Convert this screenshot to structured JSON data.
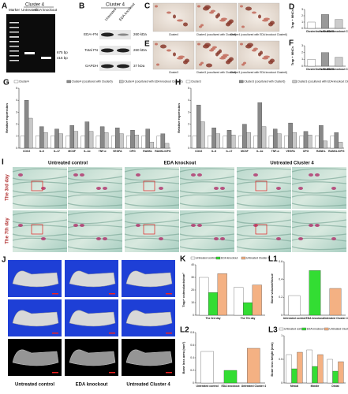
{
  "panels": {
    "A": {
      "label": "A",
      "header": "Cluster 4",
      "lanes": [
        "Marker",
        "Untreated",
        "EDA knockout"
      ],
      "sizes": [
        "675 bp",
        "415 bp"
      ]
    },
    "B": {
      "label": "B",
      "header": "Cluster 4",
      "lanes": [
        "Untreated",
        "EDA knockout"
      ],
      "rows": [
        "EDA+FN",
        "Total FN",
        "GAPDH"
      ],
      "sizes": [
        "260 kDa",
        "260 kDa",
        "37 kDa"
      ]
    },
    "C": {
      "label": "C",
      "captions": [
        "Cluster4",
        "Cluster4 (cocultured with Cluster6)",
        "Cluster4 (cocultured with EDA knockout Cluster6)"
      ]
    },
    "E": {
      "label": "E",
      "captions": [
        "Cluster3",
        "Cluster3 (cocultured with Cluster6)",
        "Cluster3 (cocultured with EDA knockout Cluster6)"
      ]
    },
    "I": {
      "label": "I",
      "columns": [
        "Untreated control",
        "EDA knockout",
        "Untreated Cluster 4"
      ],
      "rows": [
        "The 3rd day",
        "The 7th day"
      ]
    },
    "J": {
      "label": "J",
      "columns": [
        "Untreated control",
        "EDA knockout",
        "Untreated Cluster 4"
      ]
    }
  },
  "charts": {
    "D": {
      "type": "bar",
      "label": "D",
      "ylabel": "Trap + MNCs",
      "ylim": [
        0,
        3
      ],
      "yticks": [
        0,
        1,
        2,
        3
      ],
      "categories": [
        "Cluster4",
        "with Cluster6",
        "with EDA knockout Cluster6"
      ],
      "values": [
        1,
        2.2,
        1.4
      ],
      "colors": [
        "#ffffff",
        "#999999",
        "#cccccc"
      ]
    },
    "F": {
      "type": "bar",
      "label": "F",
      "ylabel": "Trap + MNCs",
      "ylim": [
        0,
        3
      ],
      "yticks": [
        0,
        1,
        2,
        3
      ],
      "categories": [
        "Cluster3",
        "with Cluster6",
        "with EDA knockout Cluster6"
      ],
      "values": [
        1,
        2,
        1.3
      ],
      "colors": [
        "#ffffff",
        "#999999",
        "#cccccc"
      ]
    },
    "G": {
      "type": "bar",
      "label": "G",
      "ylabel": "Relative expression",
      "ylim": [
        0,
        5
      ],
      "yticks": [
        0,
        1,
        2,
        3,
        4,
        5
      ],
      "categories": [
        "COX2",
        "IL-6",
        "IL-17",
        "MCSF",
        "IL-1α",
        "TNF-α",
        "VEGFA",
        "OPG",
        "RANKL",
        "RANKL/OPG"
      ],
      "series": [
        {
          "name": "Cluster4",
          "color": "#ffffff",
          "values": [
            1,
            1,
            1,
            1,
            1,
            1,
            1,
            1,
            1,
            1
          ]
        },
        {
          "name": "Cluster4 (cocultured with Cluster6)",
          "color": "#888888",
          "values": [
            4,
            1.8,
            1.6,
            1.9,
            2.2,
            1.8,
            1.7,
            1.5,
            1.6,
            1.2
          ]
        },
        {
          "name": "Cluster4 (cocultured with EDA knockout Cluster6)",
          "color": "#c8c8c8",
          "values": [
            2.5,
            1.3,
            1.2,
            1.4,
            1.4,
            1.3,
            1.2,
            1.1,
            0.5,
            0.4
          ]
        }
      ]
    },
    "H": {
      "type": "bar",
      "label": "H",
      "ylabel": "Relative expression",
      "ylim": [
        0,
        5
      ],
      "yticks": [
        0,
        1,
        2,
        3,
        4,
        5
      ],
      "categories": [
        "COX2",
        "IL-6",
        "IL-17",
        "MCSF",
        "IL-1α",
        "TNF-α",
        "VEGFA",
        "OPG",
        "RANKL",
        "RANKL/OPG"
      ],
      "series": [
        {
          "name": "Cluster3",
          "color": "#ffffff",
          "values": [
            1,
            1,
            1,
            1,
            1,
            1,
            1,
            1,
            1,
            1
          ]
        },
        {
          "name": "Cluster3 (cocultured with Cluster6)",
          "color": "#888888",
          "values": [
            3.6,
            1.7,
            1.5,
            2,
            3.8,
            1.6,
            2.1,
            1.4,
            1.9,
            1.3
          ]
        },
        {
          "name": "Cluster3 (cocultured with EDA knockout Cluster6)",
          "color": "#c8c8c8",
          "values": [
            2.2,
            1.2,
            1.1,
            1.3,
            1.8,
            1.2,
            1.3,
            1.1,
            0.6,
            0.5
          ]
        }
      ]
    },
    "K": {
      "type": "bar",
      "label": "K",
      "ylabel": "Trap+ osteoclasts/mm²",
      "ylim": [
        0,
        40
      ],
      "yticks": [
        0,
        10,
        20,
        30,
        40
      ],
      "categories": [
        "The 3rd day",
        "The 7th day"
      ],
      "series": [
        {
          "name": "Untreated control",
          "color": "#ffffff",
          "values": [
            30,
            22
          ]
        },
        {
          "name": "EDA knockout",
          "color": "#33dd33",
          "values": [
            18,
            10
          ]
        },
        {
          "name": "Untreated Cluster 4",
          "color": "#f4b183",
          "values": [
            33,
            24
          ]
        }
      ]
    },
    "L1": {
      "type": "bar",
      "label": "L1",
      "ylabel": "Bone volume/tissue",
      "ylim": [
        0,
        0.6
      ],
      "yticks": [
        0,
        0.2,
        0.4,
        0.6
      ],
      "categories": [
        "Untreated control",
        "EDA knockout",
        "Untreated Cluster 4"
      ],
      "values": [
        0.22,
        0.5,
        0.3
      ],
      "colors": [
        "#ffffff",
        "#33dd33",
        "#f4b183"
      ]
    },
    "L2": {
      "type": "bar",
      "label": "L2",
      "ylabel": "Bone loss area (mm²)",
      "ylim": [
        0,
        0.8
      ],
      "yticks": [
        0,
        0.2,
        0.4,
        0.6,
        0.8
      ],
      "categories": [
        "Untreated control",
        "EDA knockout",
        "Untreated Cluster 4"
      ],
      "values": [
        0.5,
        0.2,
        0.55
      ],
      "colors": [
        "#ffffff",
        "#33dd33",
        "#f4b183"
      ]
    },
    "L3": {
      "type": "bar",
      "label": "L3",
      "ylabel": "Bone loss height (mm)",
      "ylim": [
        0,
        1
      ],
      "yticks": [
        0,
        0.5,
        1
      ],
      "categories": [
        "Mesial",
        "Middle",
        "Distal"
      ],
      "series": [
        {
          "name": "Untreated control",
          "color": "#ffffff",
          "values": [
            0.6,
            0.7,
            0.5
          ]
        },
        {
          "name": "EDA knockout",
          "color": "#33dd33",
          "values": [
            0.3,
            0.35,
            0.25
          ]
        },
        {
          "name": "Untreated Cluster 4",
          "color": "#f4b183",
          "values": [
            0.65,
            0.6,
            0.45
          ]
        }
      ]
    }
  }
}
